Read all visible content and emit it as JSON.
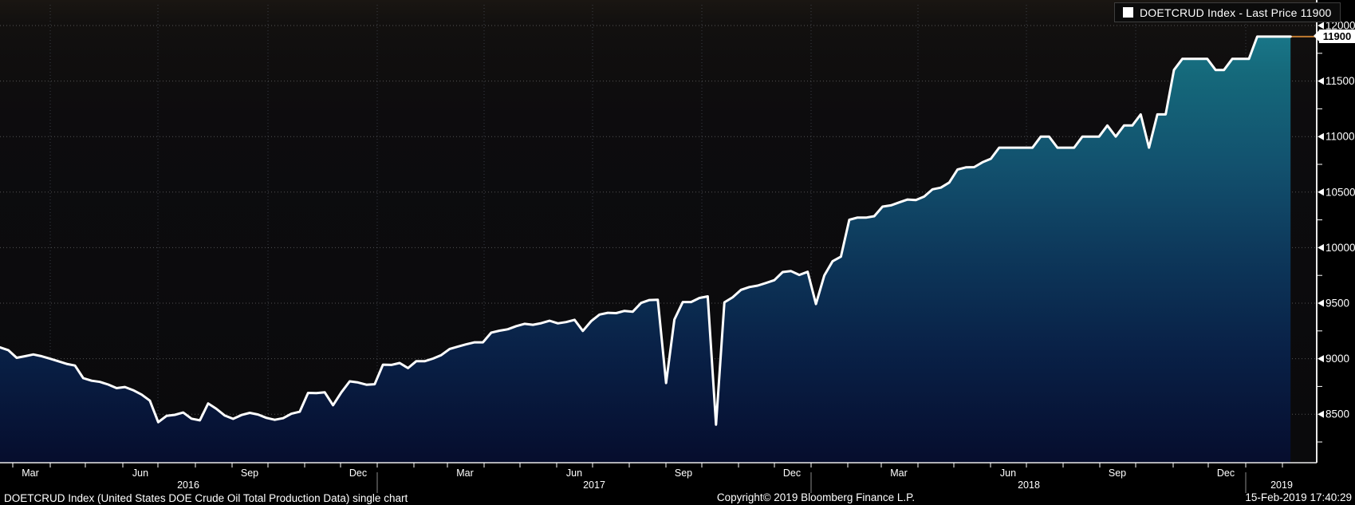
{
  "legend": {
    "swatch_color": "#ffffff",
    "label": "DOETCRUD Index - Last Price 11900"
  },
  "price_tag": {
    "value": "11900"
  },
  "footer": {
    "left_status": "DOETCRUD Index (United States DOE Crude Oil Total Production Data) single chart",
    "copyright": "Copyright© 2019 Bloomberg Finance L.P.",
    "timestamp": "15-Feb-2019 17:40:29"
  },
  "y_axis": {
    "major_ticks": [
      12000,
      11500,
      11000,
      10500,
      10000,
      9500,
      9000,
      8500
    ],
    "minor_step": 250
  },
  "x_axis": {
    "month_labels": [
      "Mar",
      "Jun",
      "Sep",
      "Dec",
      "Mar",
      "Jun",
      "Sep",
      "Dec",
      "Mar",
      "Jun",
      "Sep",
      "Dec"
    ],
    "year_labels": [
      "2016",
      "2017",
      "2018",
      "2019"
    ]
  },
  "colors": {
    "background": "#000000",
    "plot_background": "#0d0c0e",
    "line": "#ffffff",
    "fill_top": "#1d8193",
    "fill_bottom": "#060d2d",
    "last_price_line": "#c17b30",
    "h_grid": "#9a9a9a",
    "v_grid": "#6b7687",
    "axis_text": "#ffffff",
    "tag_bg": "#ffffff",
    "tag_text": "#000000"
  },
  "chart_data": {
    "type": "area",
    "series_name": "DOETCRUD Index",
    "metric": "Last Price",
    "last_price": 11900,
    "title": "DOETCRUD Index (United States DOE Crude Oil Total Production Data) single chart",
    "legend_position": "top-right",
    "grid": "dotted",
    "ylim": [
      8063,
      12187
    ],
    "x_range": [
      "2016-02-19",
      "2019-02-08"
    ],
    "frequency": "weekly",
    "x": [
      "2016-02-19",
      "2016-02-26",
      "2016-03-04",
      "2016-03-11",
      "2016-03-18",
      "2016-03-25",
      "2016-04-01",
      "2016-04-08",
      "2016-04-15",
      "2016-04-22",
      "2016-04-29",
      "2016-05-06",
      "2016-05-13",
      "2016-05-20",
      "2016-05-27",
      "2016-06-03",
      "2016-06-10",
      "2016-06-17",
      "2016-06-24",
      "2016-07-01",
      "2016-07-08",
      "2016-07-15",
      "2016-07-22",
      "2016-07-29",
      "2016-08-05",
      "2016-08-12",
      "2016-08-19",
      "2016-08-26",
      "2016-09-02",
      "2016-09-09",
      "2016-09-16",
      "2016-09-23",
      "2016-09-30",
      "2016-10-07",
      "2016-10-14",
      "2016-10-21",
      "2016-10-28",
      "2016-11-04",
      "2016-11-11",
      "2016-11-18",
      "2016-11-25",
      "2016-12-02",
      "2016-12-09",
      "2016-12-16",
      "2016-12-23",
      "2016-12-30",
      "2017-01-06",
      "2017-01-13",
      "2017-01-20",
      "2017-01-27",
      "2017-02-03",
      "2017-02-10",
      "2017-02-17",
      "2017-02-24",
      "2017-03-03",
      "2017-03-10",
      "2017-03-17",
      "2017-03-24",
      "2017-03-31",
      "2017-04-07",
      "2017-04-14",
      "2017-04-21",
      "2017-04-28",
      "2017-05-05",
      "2017-05-12",
      "2017-05-19",
      "2017-05-26",
      "2017-06-02",
      "2017-06-09",
      "2017-06-16",
      "2017-06-23",
      "2017-06-30",
      "2017-07-07",
      "2017-07-14",
      "2017-07-21",
      "2017-07-28",
      "2017-08-04",
      "2017-08-11",
      "2017-08-18",
      "2017-08-25",
      "2017-09-01",
      "2017-09-08",
      "2017-09-15",
      "2017-09-22",
      "2017-09-29",
      "2017-10-06",
      "2017-10-13",
      "2017-10-20",
      "2017-10-27",
      "2017-11-03",
      "2017-11-10",
      "2017-11-17",
      "2017-11-24",
      "2017-12-01",
      "2017-12-08",
      "2017-12-15",
      "2017-12-22",
      "2017-12-29",
      "2018-01-05",
      "2018-01-12",
      "2018-01-19",
      "2018-01-26",
      "2018-02-02",
      "2018-02-09",
      "2018-02-16",
      "2018-02-23",
      "2018-03-02",
      "2018-03-09",
      "2018-03-16",
      "2018-03-23",
      "2018-03-30",
      "2018-04-06",
      "2018-04-13",
      "2018-04-20",
      "2018-04-27",
      "2018-05-04",
      "2018-05-11",
      "2018-05-18",
      "2018-05-25",
      "2018-06-01",
      "2018-06-08",
      "2018-06-15",
      "2018-06-22",
      "2018-06-29",
      "2018-07-06",
      "2018-07-13",
      "2018-07-20",
      "2018-07-27",
      "2018-08-03",
      "2018-08-10",
      "2018-08-17",
      "2018-08-24",
      "2018-08-31",
      "2018-09-07",
      "2018-09-14",
      "2018-09-21",
      "2018-09-28",
      "2018-10-05",
      "2018-10-12",
      "2018-10-19",
      "2018-10-26",
      "2018-11-02",
      "2018-11-09",
      "2018-11-16",
      "2018-11-23",
      "2018-11-30",
      "2018-12-07",
      "2018-12-14",
      "2018-12-21",
      "2018-12-28",
      "2019-01-04",
      "2019-01-11",
      "2019-01-18",
      "2019-01-25",
      "2019-02-01",
      "2019-02-08"
    ],
    "values": [
      9102,
      9077,
      9008,
      9022,
      9038,
      9022,
      9000,
      8977,
      8953,
      8938,
      8825,
      8802,
      8791,
      8767,
      8735,
      8745,
      8716,
      8677,
      8622,
      8428,
      8485,
      8494,
      8515,
      8460,
      8445,
      8597,
      8548,
      8488,
      8458,
      8493,
      8512,
      8497,
      8467,
      8450,
      8464,
      8504,
      8522,
      8692,
      8690,
      8697,
      8581,
      8697,
      8796,
      8786,
      8766,
      8770,
      8946,
      8944,
      8961,
      8915,
      8978,
      8977,
      9001,
      9032,
      9088,
      9109,
      9129,
      9147,
      9147,
      9235,
      9252,
      9265,
      9293,
      9314,
      9305,
      9320,
      9342,
      9318,
      9330,
      9350,
      9250,
      9338,
      9397,
      9413,
      9410,
      9430,
      9423,
      9502,
      9528,
      9530,
      8781,
      9353,
      9510,
      9510,
      9547,
      9561,
      8406,
      9507,
      9553,
      9620,
      9645,
      9658,
      9682,
      9707,
      9780,
      9789,
      9754,
      9782,
      9492,
      9750,
      9878,
      9919,
      10251,
      10271,
      10270,
      10283,
      10369,
      10381,
      10407,
      10433,
      10428,
      10460,
      10525,
      10540,
      10586,
      10703,
      10723,
      10725,
      10769,
      10800,
      10900,
      10900,
      10900,
      10900,
      10900,
      11000,
      11000,
      10900,
      10900,
      10900,
      11000,
      11000,
      11000,
      11100,
      11000,
      11100,
      11100,
      11200,
      10900,
      11200,
      11200,
      11600,
      11700,
      11700,
      11700,
      11700,
      11600,
      11600,
      11700,
      11700,
      11700,
      11900,
      11900,
      11900,
      11900,
      11900
    ]
  }
}
